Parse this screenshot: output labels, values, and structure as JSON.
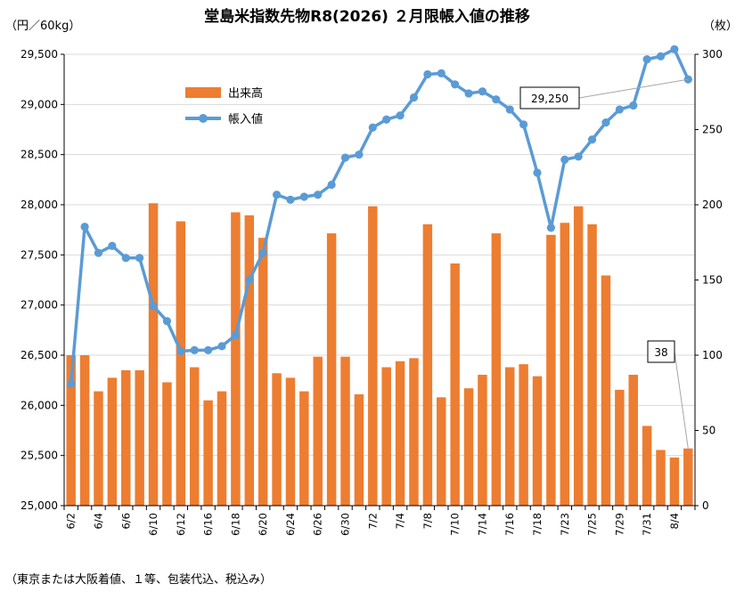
{
  "chart_data": {
    "type": "bar+line",
    "title": "堂島米指数先物R8(2026) ２月限帳入値の推移",
    "left_axis_unit": "（円／60kg）",
    "right_axis_unit": "（枚）",
    "footnote": "（東京または大阪着値、１等、包装代込、税込み）",
    "left_ylim": [
      25000,
      29500
    ],
    "left_ticks": [
      "25,000",
      "25,500",
      "26,000",
      "26,500",
      "27,000",
      "27,500",
      "28,000",
      "28,500",
      "29,000",
      "29,500"
    ],
    "right_ylim": [
      0,
      300
    ],
    "right_ticks": [
      "0",
      "50",
      "100",
      "150",
      "200",
      "250",
      "300"
    ],
    "x_tick_labels": [
      "6/2",
      "6/4",
      "6/6",
      "6/10",
      "6/12",
      "6/16",
      "6/18",
      "6/20",
      "6/24",
      "6/26",
      "6/30",
      "7/2",
      "7/4",
      "7/8",
      "7/10",
      "7/14",
      "7/16",
      "7/18",
      "7/23",
      "7/25",
      "7/29",
      "7/31",
      "8/4"
    ],
    "grid": true,
    "legend_position": "top-left",
    "series": [
      {
        "name": "出来高",
        "axis": "right",
        "kind": "bar",
        "color": "#ed7d31",
        "values": [
          100,
          100,
          76,
          85,
          90,
          90,
          201,
          82,
          189,
          92,
          70,
          76,
          195,
          193,
          178,
          88,
          85,
          76,
          99,
          181,
          99,
          74,
          199,
          92,
          96,
          98,
          187,
          72,
          161,
          78,
          87,
          181,
          92,
          94,
          86,
          180,
          188,
          199,
          187,
          153,
          77,
          87,
          53,
          37,
          32,
          38
        ]
      },
      {
        "name": "帳入値",
        "axis": "left",
        "kind": "line",
        "color": "#5b9bd5",
        "values": [
          26215,
          27780,
          27520,
          27590,
          27470,
          27470,
          26990,
          26840,
          26540,
          26550,
          26550,
          26590,
          26700,
          27250,
          27520,
          28100,
          28050,
          28080,
          28100,
          28200,
          28470,
          28500,
          28770,
          28850,
          28890,
          29070,
          29300,
          29310,
          29200,
          29110,
          29130,
          29050,
          28950,
          28800,
          28320,
          27770,
          28450,
          28480,
          28650,
          28820,
          28950,
          28990,
          29450,
          29480,
          29550,
          29250
        ]
      }
    ],
    "annotations": [
      {
        "text": "29,250",
        "target_series": "帳入値"
      },
      {
        "text": "38",
        "target_series": "出来高"
      }
    ]
  }
}
